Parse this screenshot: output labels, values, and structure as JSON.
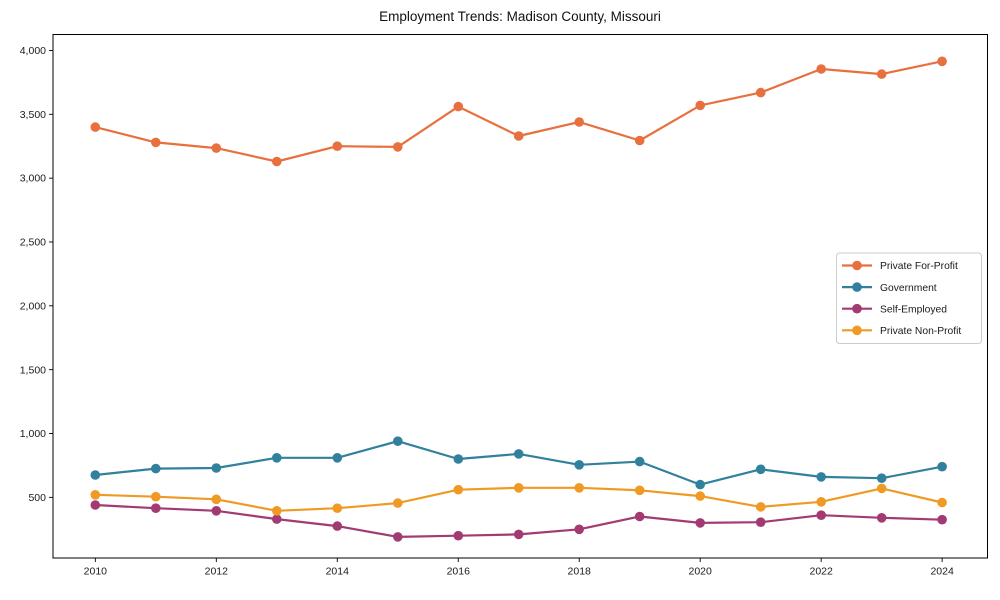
{
  "window": {
    "title": "Employment Trends: Madison County, Missouri"
  },
  "chart_data": {
    "type": "line",
    "title": "Employment Trends: Madison County, Missouri",
    "xlabel": "",
    "ylabel": "",
    "x": [
      2010,
      2011,
      2012,
      2013,
      2014,
      2015,
      2016,
      2017,
      2018,
      2019,
      2020,
      2021,
      2022,
      2023,
      2024
    ],
    "series": [
      {
        "name": "Private For-Profit",
        "color": "#E8703E",
        "values": [
          3400,
          3280,
          3235,
          3130,
          3250,
          3245,
          3560,
          3330,
          3440,
          3295,
          3570,
          3670,
          3855,
          3815,
          3915
        ]
      },
      {
        "name": "Government",
        "color": "#31819E",
        "values": [
          675,
          725,
          730,
          810,
          810,
          940,
          800,
          840,
          755,
          780,
          600,
          720,
          660,
          650,
          740
        ]
      },
      {
        "name": "Self-Employed",
        "color": "#A23B72",
        "values": [
          440,
          415,
          395,
          330,
          275,
          190,
          200,
          210,
          250,
          350,
          300,
          305,
          360,
          340,
          325
        ]
      },
      {
        "name": "Private Non-Profit",
        "color": "#F09A26",
        "values": [
          520,
          505,
          485,
          395,
          415,
          455,
          560,
          575,
          575,
          555,
          510,
          425,
          465,
          570,
          460
        ]
      }
    ],
    "xticks": [
      2010,
      2012,
      2014,
      2016,
      2018,
      2020,
      2022,
      2024
    ],
    "yticks": [
      500,
      1000,
      1500,
      2000,
      2500,
      3000,
      3500,
      4000
    ],
    "xlim": [
      2009.3,
      2024.75
    ],
    "ylim": [
      25,
      4125
    ],
    "grid": false,
    "legend": {
      "position": "center-right",
      "entries": [
        "Private For-Profit",
        "Government",
        "Self-Employed",
        "Private Non-Profit"
      ],
      "border_color": "#cccccc",
      "background": "#ffffff"
    },
    "axis_color": "#000000",
    "tick_label_color": "#1a1a1a"
  }
}
